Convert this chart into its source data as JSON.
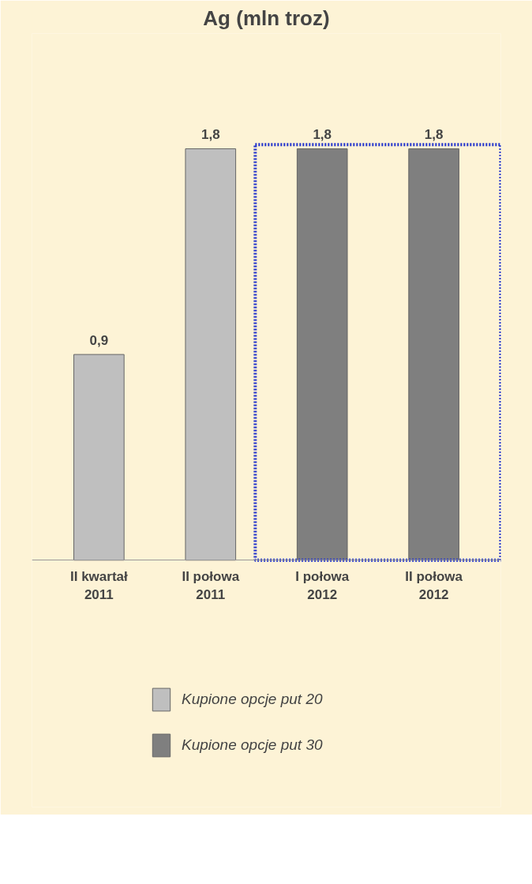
{
  "chart_data": {
    "type": "bar",
    "title": "Ag (mln troz)",
    "categories": [
      "II kwartał 2011",
      "II połowa 2011",
      "I połowa 2012",
      "II połowa 2012"
    ],
    "series": [
      {
        "name": "Kupione opcje put 20",
        "color": "#bfbfbf",
        "values": [
          0.9,
          1.8,
          null,
          null
        ],
        "value_labels": [
          "0,9",
          "1,8",
          null,
          null
        ]
      },
      {
        "name": "Kupione opcje put 30",
        "color": "#7f7f7f",
        "values": [
          null,
          null,
          1.8,
          1.8
        ],
        "value_labels": [
          null,
          null,
          "1,8",
          "1,8"
        ]
      }
    ],
    "legend": "bottom"
  }
}
